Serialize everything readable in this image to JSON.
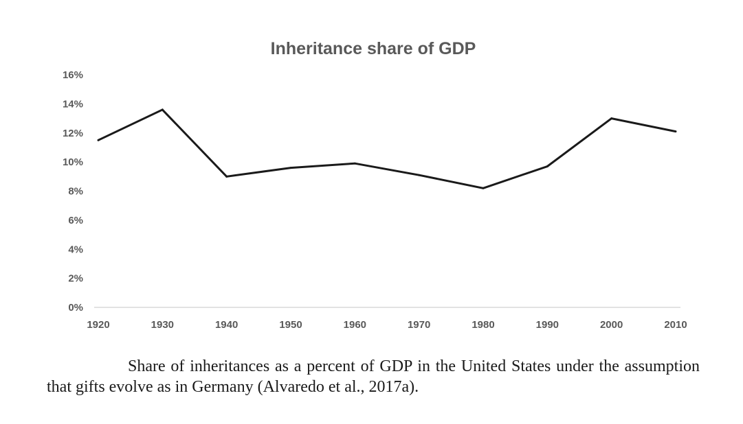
{
  "chart_data": {
    "type": "line",
    "title": "Inheritance share of GDP",
    "xlabel": "",
    "ylabel": "",
    "x": [
      1920,
      1930,
      1940,
      1950,
      1960,
      1970,
      1980,
      1990,
      2000,
      2010
    ],
    "x_tick_labels": [
      "1920",
      "1930",
      "1940",
      "1950",
      "1960",
      "1970",
      "1980",
      "1990",
      "2000",
      "2010"
    ],
    "y_tick_labels": [
      "0%",
      "2%",
      "4%",
      "6%",
      "8%",
      "10%",
      "12%",
      "14%",
      "16%"
    ],
    "y_ticks": [
      0,
      2,
      4,
      6,
      8,
      10,
      12,
      14,
      16
    ],
    "ylim": [
      0,
      16
    ],
    "xlim": [
      1920,
      2010
    ],
    "grid": false,
    "series": [
      {
        "values": [
          11.5,
          13.6,
          9.0,
          9.6,
          9.9,
          9.1,
          8.2,
          9.7,
          13.0,
          12.1
        ],
        "color": "#1a1a1a"
      }
    ]
  },
  "caption": {
    "text": "Share of inheritances as a percent of GDP in the United States under the assumption that gifts evolve as in Germany (Alvaredo et al., 2017a)."
  },
  "colors": {
    "axis_line": "#d9d9d9",
    "label_text": "#595959",
    "series_line": "#1a1a1a"
  }
}
